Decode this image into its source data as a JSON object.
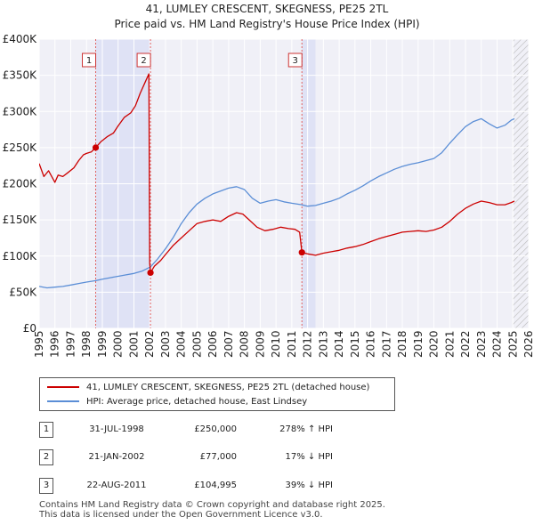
{
  "chart_data": {
    "type": "line",
    "title": "41, LUMLEY CRESCENT, SKEGNESS, PE25 2TL",
    "subtitle": "Price paid vs. HM Land Registry's House Price Index (HPI)",
    "xlim": [
      1995,
      2026
    ],
    "ylim": [
      0,
      400000
    ],
    "x_ticks": [
      "1995",
      "1996",
      "1997",
      "1998",
      "1999",
      "2000",
      "2001",
      "2002",
      "2003",
      "2004",
      "2005",
      "2006",
      "2007",
      "2008",
      "2009",
      "2010",
      "2011",
      "2012",
      "2013",
      "2014",
      "2015",
      "2016",
      "2017",
      "2018",
      "2019",
      "2020",
      "2021",
      "2022",
      "2023",
      "2024",
      "2025",
      "2026"
    ],
    "y_ticks": [
      {
        "value": 0,
        "label": "£0"
      },
      {
        "value": 50000,
        "label": "£50K"
      },
      {
        "value": 100000,
        "label": "£100K"
      },
      {
        "value": 150000,
        "label": "£150K"
      },
      {
        "value": 200000,
        "label": "£200K"
      },
      {
        "value": 250000,
        "label": "£250K"
      },
      {
        "value": 300000,
        "label": "£300K"
      },
      {
        "value": 350000,
        "label": "£350K"
      },
      {
        "value": 400000,
        "label": "£400K"
      }
    ],
    "shaded_periods": [
      [
        1998.58,
        2002.05
      ],
      [
        2011.64,
        2012.5
      ]
    ],
    "future_hatch_from": 2025.0,
    "series": [
      {
        "name": "41, LUMLEY CRESCENT, SKEGNESS, PE25 2TL (detached house)",
        "color": "#cc0000",
        "x": [
          1995.0,
          1995.3,
          1995.6,
          1996.0,
          1996.2,
          1996.5,
          1996.8,
          1997.2,
          1997.5,
          1997.8,
          1998.0,
          1998.3,
          1998.58,
          1998.9,
          1999.3,
          1999.7,
          2000.0,
          2000.4,
          2000.8,
          2001.1,
          2001.4,
          2001.7,
          2001.95,
          2002.0,
          2002.05,
          2002.3,
          2002.7,
          2003.0,
          2003.5,
          2004.0,
          2004.5,
          2005.0,
          2005.5,
          2006.0,
          2006.5,
          2007.0,
          2007.5,
          2007.9,
          2008.3,
          2008.8,
          2009.3,
          2009.8,
          2010.3,
          2010.8,
          2011.2,
          2011.5,
          2011.64,
          2012.0,
          2012.5,
          2013.0,
          2013.5,
          2014.0,
          2014.5,
          2015.0,
          2015.5,
          2016.0,
          2016.5,
          2017.0,
          2017.5,
          2018.0,
          2018.5,
          2019.0,
          2019.5,
          2020.0,
          2020.5,
          2021.0,
          2021.5,
          2022.0,
          2022.5,
          2023.0,
          2023.5,
          2024.0,
          2024.5,
          2024.9,
          2025.1
        ],
        "y": [
          228000,
          210000,
          218000,
          202000,
          212000,
          210000,
          215000,
          222000,
          232000,
          240000,
          242000,
          244000,
          250000,
          258000,
          265000,
          270000,
          280000,
          292000,
          298000,
          308000,
          325000,
          340000,
          352000,
          90000,
          77000,
          86000,
          94000,
          102000,
          115000,
          125000,
          135000,
          145000,
          148000,
          150000,
          148000,
          155000,
          160000,
          158000,
          150000,
          140000,
          135000,
          137000,
          140000,
          138000,
          137000,
          133000,
          104995,
          103000,
          101000,
          104000,
          106000,
          108000,
          111000,
          113000,
          116000,
          120000,
          124000,
          127000,
          130000,
          133000,
          134000,
          135000,
          134000,
          136000,
          140000,
          148000,
          158000,
          166000,
          172000,
          176000,
          174000,
          171000,
          171000,
          174000,
          176000
        ]
      },
      {
        "name": "HPI: Average price, detached house, East Lindsey",
        "color": "#5b8ed6",
        "x": [
          1995.0,
          1995.5,
          1996.0,
          1996.5,
          1997.0,
          1997.5,
          1998.0,
          1998.58,
          1999.0,
          1999.5,
          2000.0,
          2000.5,
          2001.0,
          2001.5,
          2002.05,
          2002.5,
          2003.0,
          2003.5,
          2004.0,
          2004.5,
          2005.0,
          2005.5,
          2006.0,
          2006.5,
          2007.0,
          2007.5,
          2008.0,
          2008.5,
          2009.0,
          2009.5,
          2010.0,
          2010.5,
          2011.0,
          2011.64,
          2012.0,
          2012.5,
          2013.0,
          2013.5,
          2014.0,
          2014.5,
          2015.0,
          2015.5,
          2016.0,
          2016.5,
          2017.0,
          2017.5,
          2018.0,
          2018.5,
          2019.0,
          2019.5,
          2020.0,
          2020.5,
          2021.0,
          2021.5,
          2022.0,
          2022.5,
          2023.0,
          2023.5,
          2024.0,
          2024.5,
          2024.9,
          2025.1
        ],
        "y": [
          58000,
          56000,
          57000,
          58000,
          60000,
          62000,
          64000,
          66000,
          68000,
          70000,
          72000,
          74000,
          76000,
          79000,
          85000,
          96000,
          110000,
          126000,
          145000,
          160000,
          172000,
          180000,
          186000,
          190000,
          194000,
          196000,
          192000,
          180000,
          173000,
          176000,
          178000,
          175000,
          173000,
          171000,
          169000,
          170000,
          173000,
          176000,
          180000,
          186000,
          191000,
          197000,
          204000,
          210000,
          215000,
          220000,
          224000,
          227000,
          229000,
          232000,
          235000,
          243000,
          256000,
          268000,
          279000,
          286000,
          290000,
          283000,
          277000,
          281000,
          288000,
          290000
        ]
      }
    ],
    "markers": [
      {
        "label": "1",
        "x": 1998.58,
        "y": 250000
      },
      {
        "label": "2",
        "x": 2002.05,
        "y": 77000
      },
      {
        "label": "3",
        "x": 2011.64,
        "y": 104995
      }
    ]
  },
  "legend": {
    "red_label": "41, LUMLEY CRESCENT, SKEGNESS, PE25 2TL (detached house)",
    "blue_label": "HPI: Average price, detached house, East Lindsey"
  },
  "transactions": [
    {
      "num": "1",
      "date": "31-JUL-1998",
      "price": "£250,000",
      "hpi": "278% ↑ HPI"
    },
    {
      "num": "2",
      "date": "21-JAN-2002",
      "price": "£77,000",
      "hpi": "17% ↓ HPI"
    },
    {
      "num": "3",
      "date": "22-AUG-2011",
      "price": "£104,995",
      "hpi": "39% ↓ HPI"
    }
  ],
  "footer": {
    "line1": "Contains HM Land Registry data © Crown copyright and database right 2025.",
    "line2": "This data is licensed under the Open Government Licence v3.0."
  }
}
